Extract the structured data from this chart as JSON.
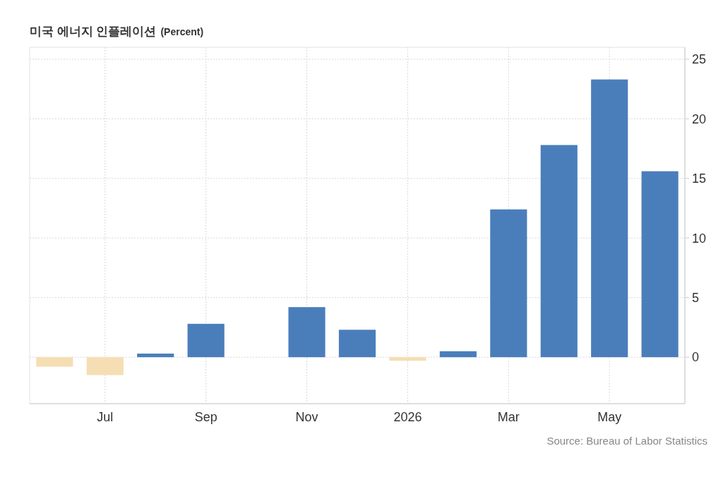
{
  "chart_data": {
    "type": "bar",
    "title": "미국 에너지 인플레이션",
    "subtitle": "(Percent)",
    "categories": [
      null,
      "Jul",
      null,
      "Sep",
      null,
      "Nov",
      null,
      "2026",
      null,
      "Mar",
      null,
      "May",
      null
    ],
    "values": [
      -0.8,
      -1.5,
      0.3,
      2.8,
      null,
      4.2,
      2.3,
      -0.3,
      0.5,
      12.4,
      17.8,
      23.3,
      15.6
    ],
    "colors": [
      "#f5deb3",
      "#f5deb3",
      "#4a7ebb",
      "#4a7ebb",
      null,
      "#4a7ebb",
      "#4a7ebb",
      "#f5deb3",
      "#4a7ebb",
      "#4a7ebb",
      "#4a7ebb",
      "#4a7ebb",
      "#4a7ebb"
    ],
    "ylim": [
      -3.9,
      26
    ],
    "yticks": [
      0,
      5,
      10,
      15,
      20,
      25
    ],
    "grid": true,
    "annotations": [
      "Source: Bureau of Labor Statistics"
    ]
  }
}
